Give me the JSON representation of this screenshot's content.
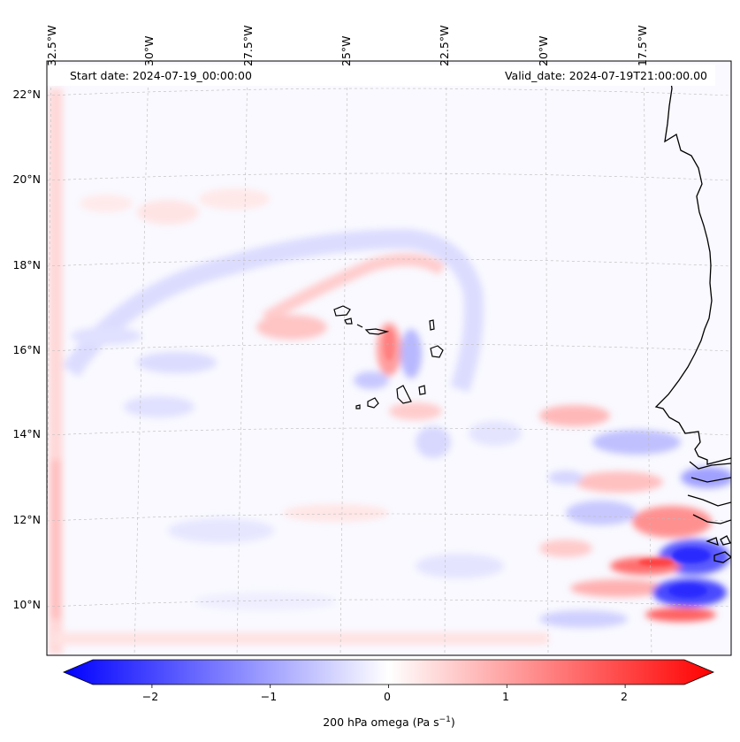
{
  "map": {
    "start_date": "Start date: 2024-07-19_00:00:00",
    "valid_date": "Valid_date: 2024-07-19T21:00:00.00",
    "longitude_labels": [
      "32.5°W",
      "30°W",
      "27.5°W",
      "25°W",
      "22.5°W",
      "20°W",
      "17.5°W"
    ],
    "latitude_labels": [
      "22°N",
      "20°N",
      "18°N",
      "16°N",
      "14°N",
      "12°N",
      "10°N"
    ],
    "variable": "200 hPa omega",
    "extent": {
      "lon_min": -33,
      "lon_max": -15.5,
      "lat_min": 8.9,
      "lat_max": 22.8
    }
  },
  "colorbar": {
    "label_text": "200 hPa omega (Pa s",
    "label_unit_sup": "−1",
    "label_close": ")",
    "tick_labels": [
      "−2",
      "−1",
      "0",
      "1",
      "2"
    ],
    "tick_values": [
      -2,
      -1,
      0,
      1,
      2
    ],
    "vmin": -2.5,
    "vmax": 2.5,
    "cmap": "bwr",
    "color_low": "#0000ff",
    "color_mid": "#ffffff",
    "color_high": "#ff0000"
  },
  "colors": {
    "coastline": "#000000",
    "gridline": "#bbbbbb"
  }
}
